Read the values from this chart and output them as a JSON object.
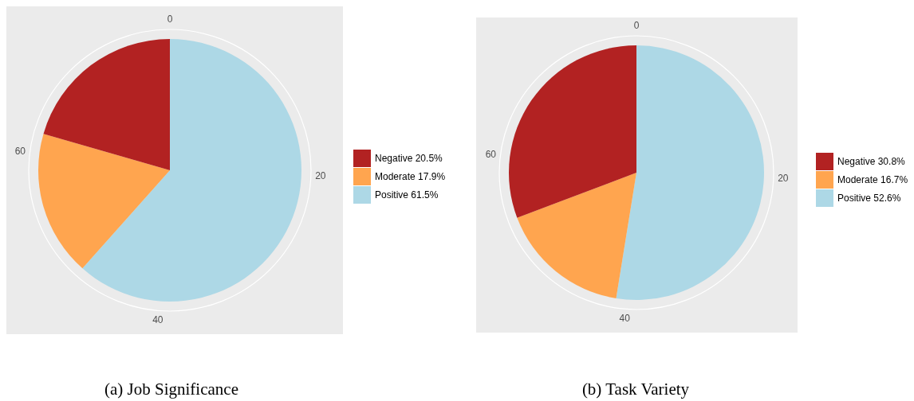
{
  "chart_data": [
    {
      "type": "pie",
      "title": "(a) Job Significance",
      "categories": [
        "Negative 20.5%",
        "Moderate 17.9%",
        "Positive 61.5%"
      ],
      "values": [
        20.5,
        17.9,
        61.5
      ],
      "colors": [
        "#b22222",
        "#ffa54f",
        "#add8e6"
      ],
      "annotations": [
        "0",
        "20",
        "40",
        "60"
      ],
      "grid": true,
      "legend": "right"
    },
    {
      "type": "pie",
      "title": "(b) Task Variety",
      "categories": [
        "Negative 30.8%",
        "Moderate 16.7%",
        "Positive 52.6%"
      ],
      "values": [
        30.8,
        16.7,
        52.6
      ],
      "colors": [
        "#b22222",
        "#ffa54f",
        "#add8e6"
      ],
      "annotations": [
        "0",
        "20",
        "40",
        "60"
      ],
      "grid": true,
      "legend": "right"
    }
  ]
}
